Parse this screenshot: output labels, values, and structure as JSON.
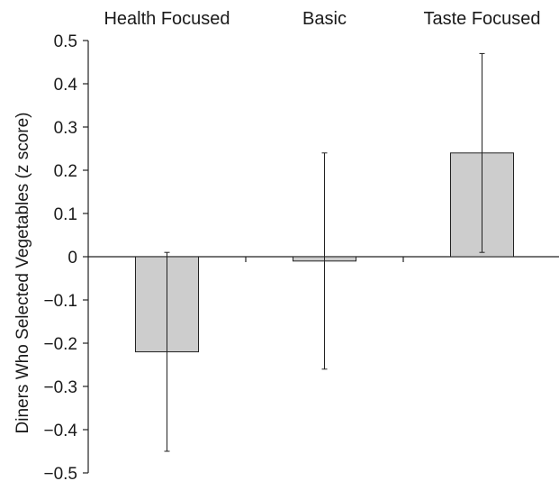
{
  "chart_data": {
    "type": "bar",
    "categories": [
      "Health Focused",
      "Basic",
      "Taste Focused"
    ],
    "values": [
      -0.22,
      -0.01,
      0.24
    ],
    "error_low": [
      -0.45,
      -0.26,
      0.01
    ],
    "error_high": [
      0.01,
      0.24,
      0.47
    ],
    "ylabel": "Diners Who Selected Vegetables (z score)",
    "ylim": [
      -0.5,
      0.5
    ],
    "yticks": [
      "0.5",
      "0.4",
      "0.3",
      "0.2",
      "0.1",
      "0",
      "−0.1",
      "−0.2",
      "−0.3",
      "−0.4",
      "−0.5"
    ],
    "ytick_values": [
      0.5,
      0.4,
      0.3,
      0.2,
      0.1,
      0,
      -0.1,
      -0.2,
      -0.3,
      -0.4,
      -0.5
    ],
    "category_labels_position": "top",
    "grid": false,
    "bar_color": "#cdcdcd"
  }
}
